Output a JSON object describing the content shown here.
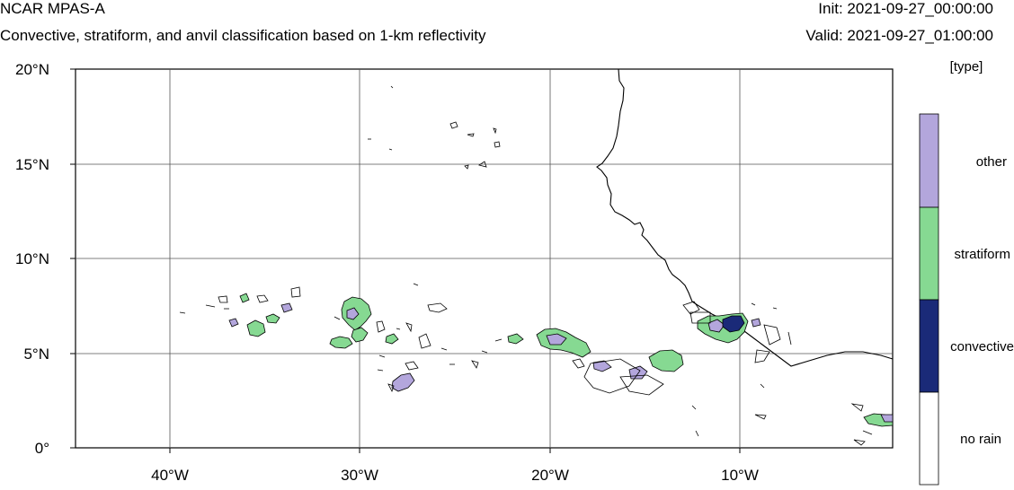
{
  "header": {
    "model": "NCAR MPAS-A",
    "description": "Convective, stratiform, and anvil classification based on 1-km reflectivity",
    "init": "Init: 2021-09-27_00:00:00",
    "valid": "Valid: 2021-09-27_01:00:00"
  },
  "map": {
    "lon_range": [
      -45,
      -2
    ],
    "lat_range": [
      0,
      20
    ],
    "lat_ticks": [
      "20°N",
      "15°N",
      "10°N",
      "5°N",
      "0°"
    ],
    "lon_ticks": [
      "40°W",
      "30°W",
      "20°W",
      "10°W"
    ],
    "grid": true
  },
  "colorbar": {
    "units": "[type]",
    "classes": [
      {
        "label": "other",
        "color": "#b3a6dc"
      },
      {
        "label": "stratiform",
        "color": "#86d992"
      },
      {
        "label": "convective",
        "color": "#1a2a78"
      },
      {
        "label": "no rain",
        "color": "#ffffff"
      }
    ]
  }
}
